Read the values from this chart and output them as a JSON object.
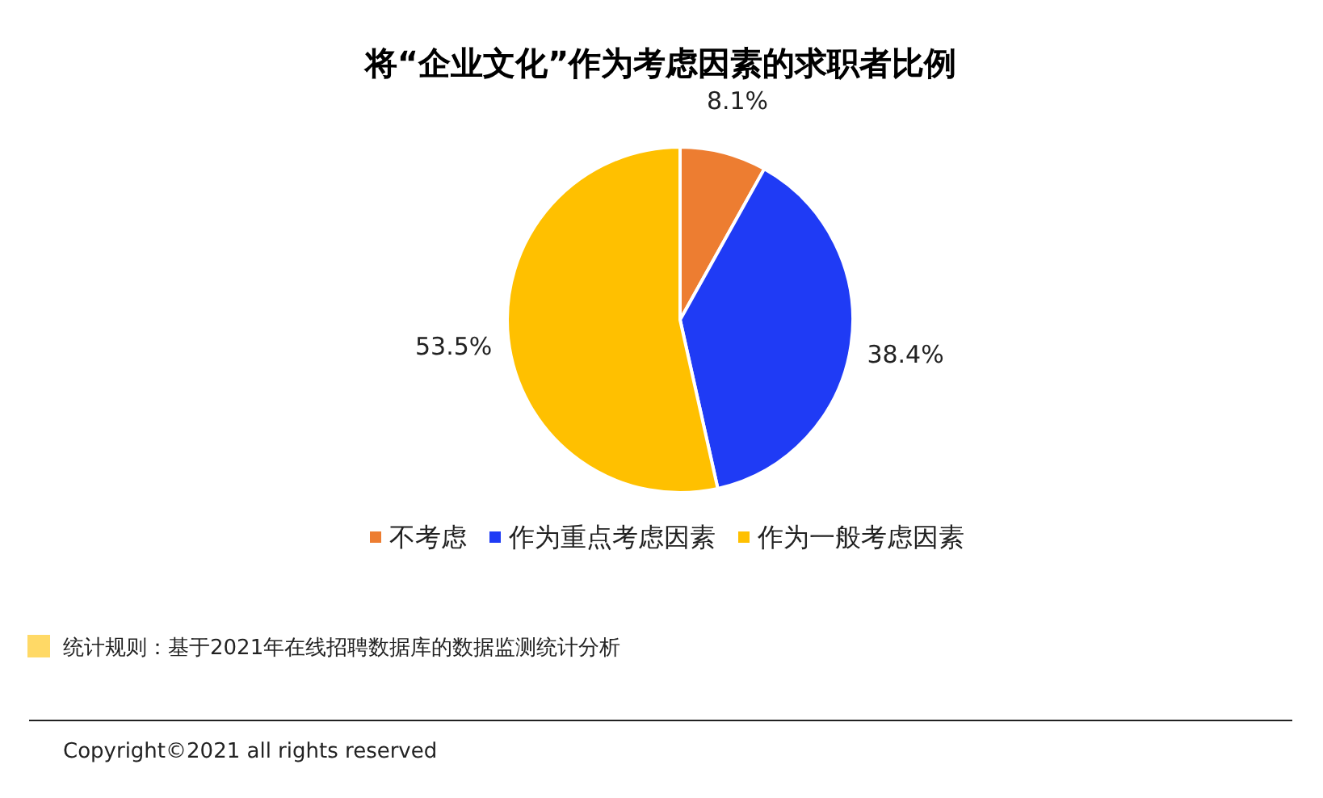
{
  "chart_data": {
    "type": "pie",
    "title": "将“企业文化”作为考虑因素的求职者比例",
    "categories": [
      "不考虑",
      "作为重点考虑因素",
      "作为一般考虑因素"
    ],
    "values": [
      8.1,
      38.4,
      53.5
    ],
    "colors": [
      "#ed7d31",
      "#1f3bf5",
      "#ffc000"
    ],
    "value_labels": [
      "8.1%",
      "38.4%",
      "53.5%"
    ],
    "legend": "bottom",
    "annotations": [
      "统计规则：基于2021年在线招聘数据库的数据监测统计分析",
      "Copyright©2021 all rights reserved"
    ]
  }
}
